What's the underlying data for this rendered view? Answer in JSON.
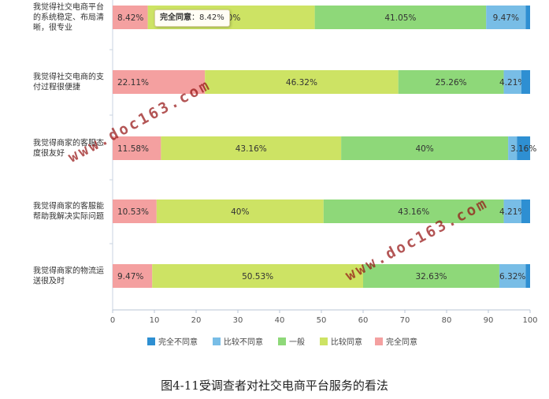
{
  "chart_data": {
    "type": "bar",
    "orientation": "horizontal-stacked",
    "categories": [
      [
        "我觉得社交电商平台",
        "的系统稳定、布局清",
        "晰，很专业"
      ],
      [
        "我觉得社交电商的支",
        "付过程很便捷"
      ],
      [
        "我觉得商家的客服态",
        "度很友好"
      ],
      [
        "我觉得商家的客服能",
        "帮助我解决实际问题"
      ],
      [
        "我觉得商家的物流运",
        "送很及时"
      ]
    ],
    "series": [
      {
        "name": "完全同意",
        "color": "#f4a0a0",
        "values": [
          8.42,
          22.11,
          11.58,
          10.53,
          9.47
        ],
        "labels": [
          "8.42%",
          "22.11%",
          "11.58%",
          "10.53%",
          "9.47%"
        ]
      },
      {
        "name": "比较同意",
        "color": "#cde364",
        "values": [
          40,
          46.32,
          43.16,
          40,
          50.53
        ],
        "labels": [
          "40%",
          "46.32%",
          "43.16%",
          "40%",
          "50.53%"
        ]
      },
      {
        "name": "一般",
        "color": "#8ed879",
        "values": [
          41.05,
          25.26,
          40,
          43.16,
          32.63
        ],
        "labels": [
          "41.05%",
          "25.26%",
          "40%",
          "43.16%",
          "32.63%"
        ]
      },
      {
        "name": "比较不同意",
        "color": "#78bde6",
        "values": [
          9.47,
          4.21,
          2.11,
          4.21,
          6.32
        ],
        "labels": [
          "9.47%",
          "4.21%",
          "",
          "4.21%",
          "6.32%"
        ]
      },
      {
        "name": "完全不同意",
        "color": "#2e8fd2",
        "values": [
          1.06,
          2.1,
          3.16,
          2.1,
          1.05
        ],
        "labels": [
          "",
          "",
          "3.16%",
          "",
          ""
        ]
      }
    ],
    "legend_order": [
      "完全不同意",
      "比较不同意",
      "一般",
      "比较同意",
      "完全同意"
    ],
    "xticks": [
      "0",
      "10",
      "20",
      "30",
      "40",
      "50",
      "60",
      "70",
      "80",
      "90",
      "100"
    ],
    "xlim": [
      0,
      100
    ],
    "legend": "bottom",
    "grid": false
  },
  "tooltip": {
    "series": "完全同意",
    "value": "8.42%"
  },
  "caption": "图4-11受调查者对社交电商平台服务的看法",
  "watermarks": [
    "www.doc163.com",
    "www.doc163.com"
  ]
}
